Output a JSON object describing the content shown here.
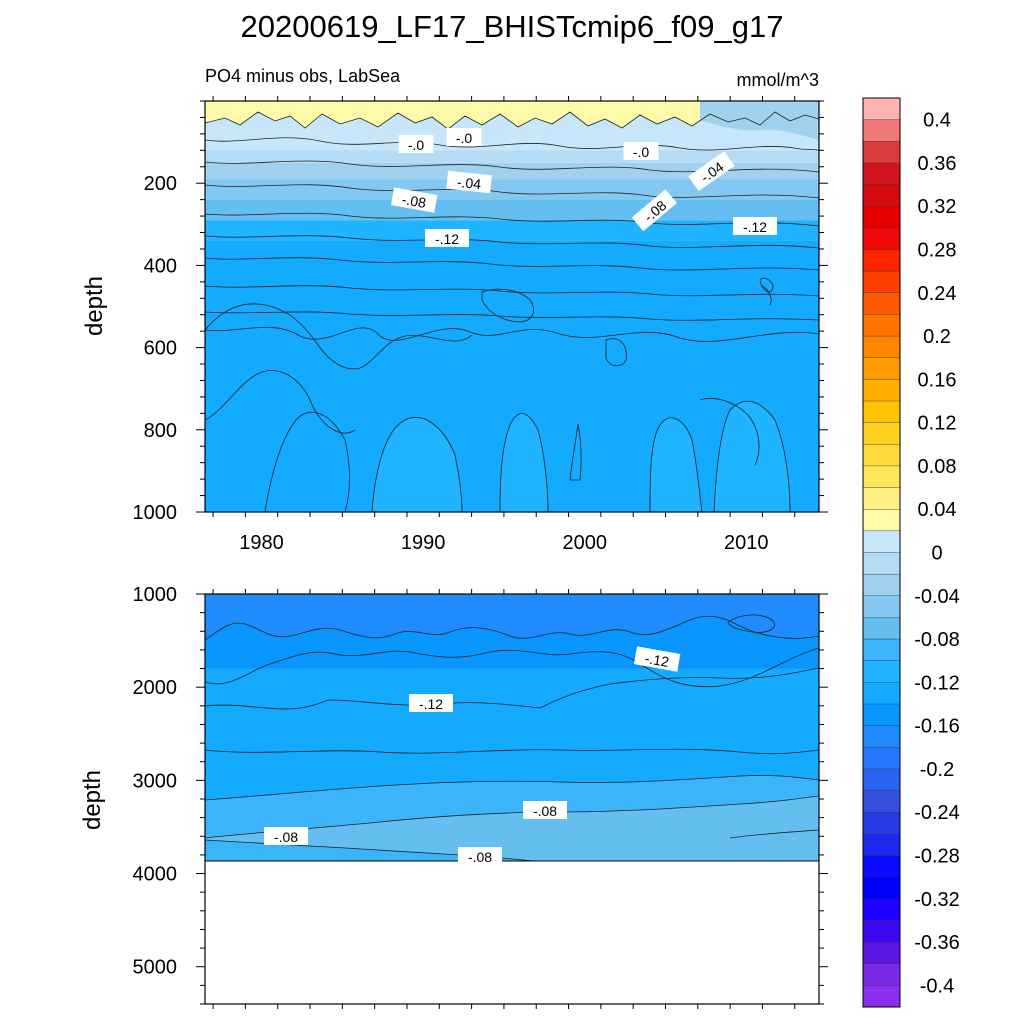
{
  "title": "20200619_LF17_BHISTcmip6_f09_g17",
  "subtitle_left": "PO4 minus obs, LabSea",
  "subtitle_right": "mmol/m^3",
  "chart_data": [
    {
      "type": "heatmap",
      "panel": "upper",
      "variable": "PO4 minus obs",
      "region": "LabSea",
      "units": "mmol/m^3",
      "xlabel": "",
      "ylabel": "depth",
      "xlim": [
        1976.5,
        2014.5
      ],
      "ylim": [
        1000,
        0
      ],
      "x_ticks": [
        1980,
        1990,
        2000,
        2010
      ],
      "y_ticks": [
        200,
        400,
        600,
        800,
        1000
      ],
      "contour_labels": [
        "-.0",
        "-.0",
        "-.0",
        "-.04",
        "-.04",
        "-.08",
        "-.08",
        "-.12",
        "-.12"
      ],
      "depth_bands": [
        {
          "depth": [
            0,
            120
          ],
          "value": 0.01
        },
        {
          "depth": [
            120,
            150
          ],
          "value": -0.01
        },
        {
          "depth": [
            150,
            190
          ],
          "value": -0.03
        },
        {
          "depth": [
            190,
            240
          ],
          "value": -0.05
        },
        {
          "depth": [
            240,
            290
          ],
          "value": -0.07
        },
        {
          "depth": [
            290,
            340
          ],
          "value": -0.1
        },
        {
          "depth": [
            340,
            1000
          ],
          "value": -0.13
        }
      ]
    },
    {
      "type": "heatmap",
      "panel": "lower",
      "variable": "PO4 minus obs",
      "region": "LabSea",
      "units": "mmol/m^3",
      "xlabel": "",
      "ylabel": "depth",
      "xlim": [
        1976.5,
        2014.5
      ],
      "ylim": [
        5400,
        1000
      ],
      "y_ticks": [
        1000,
        2000,
        3000,
        4000,
        5000
      ],
      "contour_labels": [
        "-.12",
        "-.12",
        "-.08",
        "-.08",
        "-.08"
      ],
      "max_data_depth": 3880,
      "depth_bands": [
        {
          "depth": [
            1000,
            1800
          ],
          "value": -0.15
        },
        {
          "depth": [
            1800,
            3200
          ],
          "value": -0.13
        },
        {
          "depth": [
            3200,
            3650
          ],
          "value": -0.1
        },
        {
          "depth": [
            3650,
            3880
          ],
          "value": -0.09
        }
      ]
    }
  ],
  "colorbar": {
    "tick_labels": [
      "0.4",
      "0.36",
      "0.32",
      "0.28",
      "0.24",
      "0.2",
      "0.16",
      "0.12",
      "0.08",
      "0.04",
      "0",
      "-0.04",
      "-0.08",
      "-0.12",
      "-0.16",
      "-0.2",
      "-0.24",
      "-0.28",
      "-0.32",
      "-0.36",
      "-0.4"
    ],
    "colors_top_to_bottom": [
      "#FFB4B4",
      "#F07878",
      "#DC3C3C",
      "#D2141E",
      "#D70A0F",
      "#E60000",
      "#F00A0A",
      "#FF2300",
      "#FF4100",
      "#FF5A00",
      "#FF7300",
      "#FF8700",
      "#FF9B00",
      "#FFAF00",
      "#FFC300",
      "#FFD21E",
      "#FFDC3C",
      "#FFE65A",
      "#FFF082",
      "#FFFAAA",
      "#C8E6FA",
      "#B4DCF5",
      "#A0D2F0",
      "#82C8F0",
      "#64BEF0",
      "#3CB4FA",
      "#1EB4FF",
      "#14AAFF",
      "#0A96FF",
      "#1E8CFF",
      "#2878FF",
      "#2864F0",
      "#3250DC",
      "#283CE6",
      "#1E28F0",
      "#0A0AFF",
      "#0000FF",
      "#1E00FF",
      "#3C0AF0",
      "#5A14E6",
      "#7828E6",
      "#8C2DF0"
    ]
  }
}
